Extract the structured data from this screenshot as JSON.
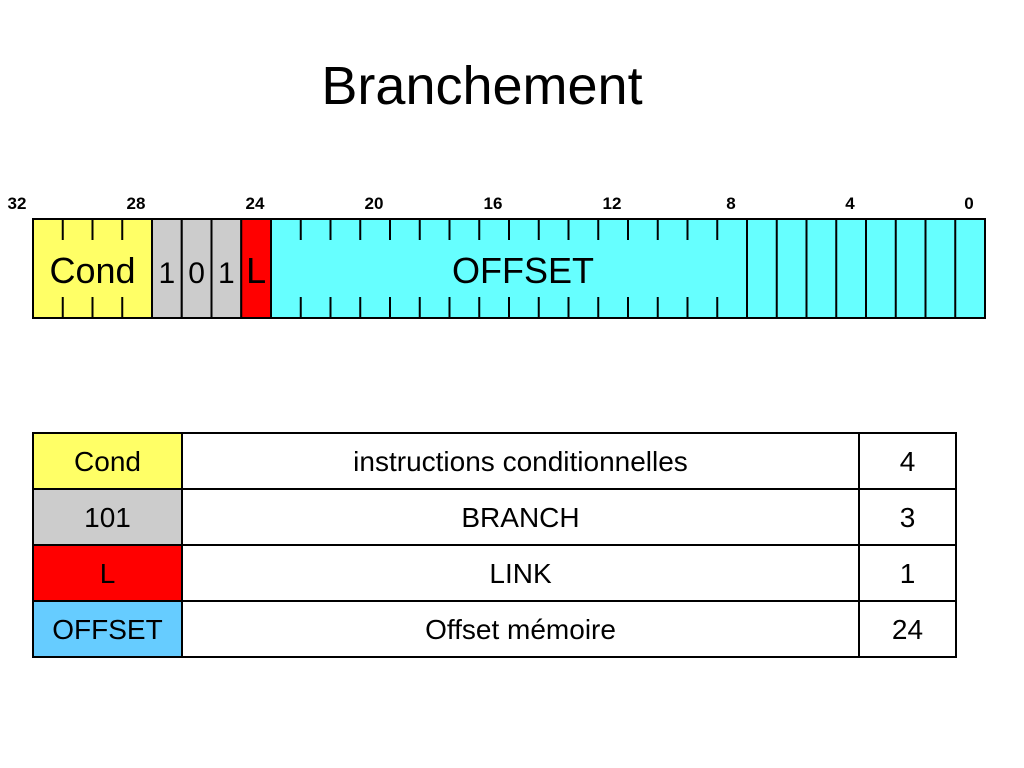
{
  "title": "Branchement",
  "bit_labels": [
    "32",
    "28",
    "24",
    "20",
    "16",
    "12",
    "8",
    "4",
    "0"
  ],
  "fields": [
    {
      "name": "Cond",
      "label": "Cond",
      "msb": 31,
      "lsb": 28,
      "color": "#FFFF66",
      "ticks": "short"
    },
    {
      "name": "bit27",
      "label": "1",
      "msb": 27,
      "lsb": 27,
      "color": "#CCCCCC",
      "ticks": "none"
    },
    {
      "name": "bit26",
      "label": "0",
      "msb": 26,
      "lsb": 26,
      "color": "#CCCCCC",
      "ticks": "none"
    },
    {
      "name": "bit25",
      "label": "1",
      "msb": 25,
      "lsb": 25,
      "color": "#CCCCCC",
      "ticks": "none"
    },
    {
      "name": "L",
      "label": "L",
      "msb": 24,
      "lsb": 24,
      "color": "#FF0000",
      "ticks": "none"
    },
    {
      "name": "OFFSET",
      "label": "OFFSET",
      "msb": 23,
      "lsb": 0,
      "color": "#66FFFF",
      "ticks": "short-above-8-full-below-8"
    }
  ],
  "table": {
    "rows": [
      {
        "field": "Cond",
        "description": "instructions conditionnelles",
        "bits": "4",
        "color": "#FFFF66"
      },
      {
        "field": "101",
        "description": "BRANCH",
        "bits": "3",
        "color": "#CCCCCC"
      },
      {
        "field": "L",
        "description": "LINK",
        "bits": "1",
        "color": "#FF0000"
      },
      {
        "field": "OFFSET",
        "description": "Offset mémoire",
        "bits": "24",
        "color": "#66CCFF"
      }
    ]
  }
}
